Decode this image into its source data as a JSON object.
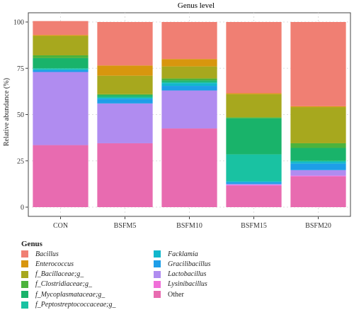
{
  "chart_data": {
    "type": "bar",
    "stacked": true,
    "title": "Genus level",
    "xlabel": "",
    "ylabel": "Relative abundance (%)",
    "ylim": [
      0,
      100
    ],
    "yticks": [
      0,
      25,
      50,
      75,
      100
    ],
    "grid": true,
    "legend_position": "bottom",
    "categories": [
      "CON",
      "BSFM5",
      "BSFM10",
      "BSFM15",
      "BSFM20"
    ],
    "legend_title": "Genus",
    "series": [
      {
        "name": "Other",
        "italic": false,
        "color": "#E86BB0",
        "values": [
          33.5,
          34.5,
          42.5,
          11.5,
          16.5
        ]
      },
      {
        "name": "Lysinibacillus",
        "italic": true,
        "color": "#F06FD8",
        "values": [
          0,
          0,
          0,
          0.5,
          0.5
        ]
      },
      {
        "name": "Lactobacillus",
        "italic": true,
        "color": "#B08CF0",
        "values": [
          39.5,
          21.5,
          20.5,
          0.5,
          3.0
        ]
      },
      {
        "name": "Gracilibacillus",
        "italic": true,
        "color": "#1E9EE8",
        "values": [
          1.0,
          2.5,
          2.5,
          1.0,
          3.5
        ]
      },
      {
        "name": "Facklamia",
        "italic": true,
        "color": "#11B7CC",
        "values": [
          0.5,
          0.5,
          1.5,
          0.5,
          1.0
        ]
      },
      {
        "name": "f_Peptostreptococcaceae;g_",
        "italic": true,
        "color": "#19C2A2",
        "values": [
          0.5,
          0.5,
          0.5,
          14.5,
          0.5
        ]
      },
      {
        "name": "f_Mycoplasmataceae;g_",
        "italic": true,
        "color": "#19B36A",
        "values": [
          5.5,
          1.0,
          1.0,
          19.5,
          7.0
        ]
      },
      {
        "name": "f_Clostridiaceae;g_",
        "italic": true,
        "color": "#4CB33C",
        "values": [
          1.5,
          0.5,
          1.0,
          0.5,
          2.5
        ]
      },
      {
        "name": "f_Bacillaceae;g_",
        "italic": true,
        "color": "#A7A81E",
        "values": [
          10.5,
          10.0,
          6.5,
          12.5,
          19.5
        ]
      },
      {
        "name": "Enterococcus",
        "italic": true,
        "color": "#D8960E",
        "values": [
          0.5,
          5.5,
          4.0,
          0.5,
          0.5
        ]
      },
      {
        "name": "Bacillus",
        "italic": true,
        "color": "#F07F73",
        "values": [
          7.5,
          23.5,
          20.0,
          38.5,
          45.5
        ]
      }
    ]
  }
}
